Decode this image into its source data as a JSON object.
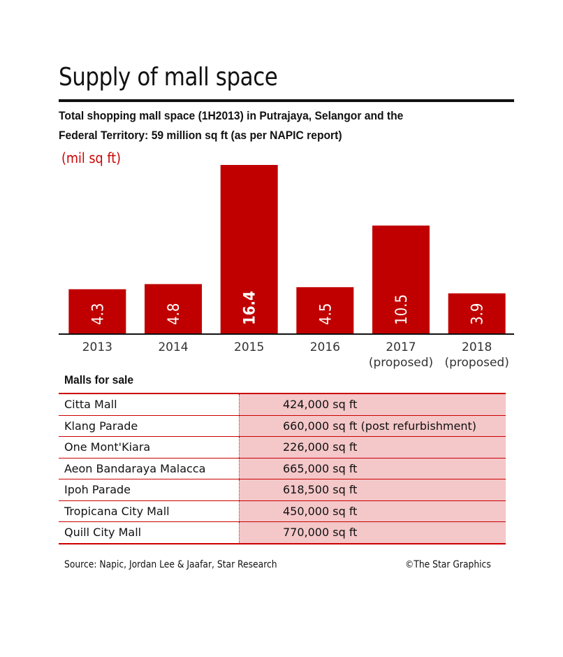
{
  "header": {
    "title": "Supply of mall space",
    "subtitle_line1": "Total shopping mall space (1H2013) in Putrajaya, Selangor and the",
    "subtitle_line2": "Federal Territory: 59 million sq ft (as per NAPIC report)"
  },
  "chart_data": {
    "type": "bar",
    "unit_label": "(mil sq ft)",
    "categories": [
      [
        "2013"
      ],
      [
        "2014"
      ],
      [
        "2015"
      ],
      [
        "2016"
      ],
      [
        "2017",
        "(proposed)"
      ],
      [
        "2018",
        "(proposed)"
      ]
    ],
    "values": [
      4.3,
      4.8,
      16.4,
      4.5,
      10.5,
      3.9
    ],
    "value_labels": [
      "4.3",
      "4.8",
      "16.4",
      "4.5",
      "10.5",
      "3.9"
    ],
    "bar_color": "#c00000",
    "grid": false,
    "legend": "none"
  },
  "malls": {
    "heading": "Malls for sale",
    "rows": [
      {
        "name": "Citta Mall",
        "size": "424,000 sq ft"
      },
      {
        "name": "Klang Parade",
        "size": "660,000 sq ft (post refurbishment)"
      },
      {
        "name": "One Mont'Kiara",
        "size": "226,000 sq ft"
      },
      {
        "name": "Aeon Bandaraya Malacca",
        "size": "665,000 sq ft"
      },
      {
        "name": "Ipoh Parade",
        "size": "618,500 sq ft"
      },
      {
        "name": "Tropicana City Mall",
        "size": "450,000 sq ft"
      },
      {
        "name": "Quill City Mall",
        "size": "770,000 sq ft"
      }
    ]
  },
  "footer": {
    "source": "Source: Napic, Jordan Lee & Jaafar, Star Research",
    "credit": "©The Star Graphics"
  },
  "colors": {
    "accent": "#c00000",
    "table_fill": "#f4c7c9"
  }
}
